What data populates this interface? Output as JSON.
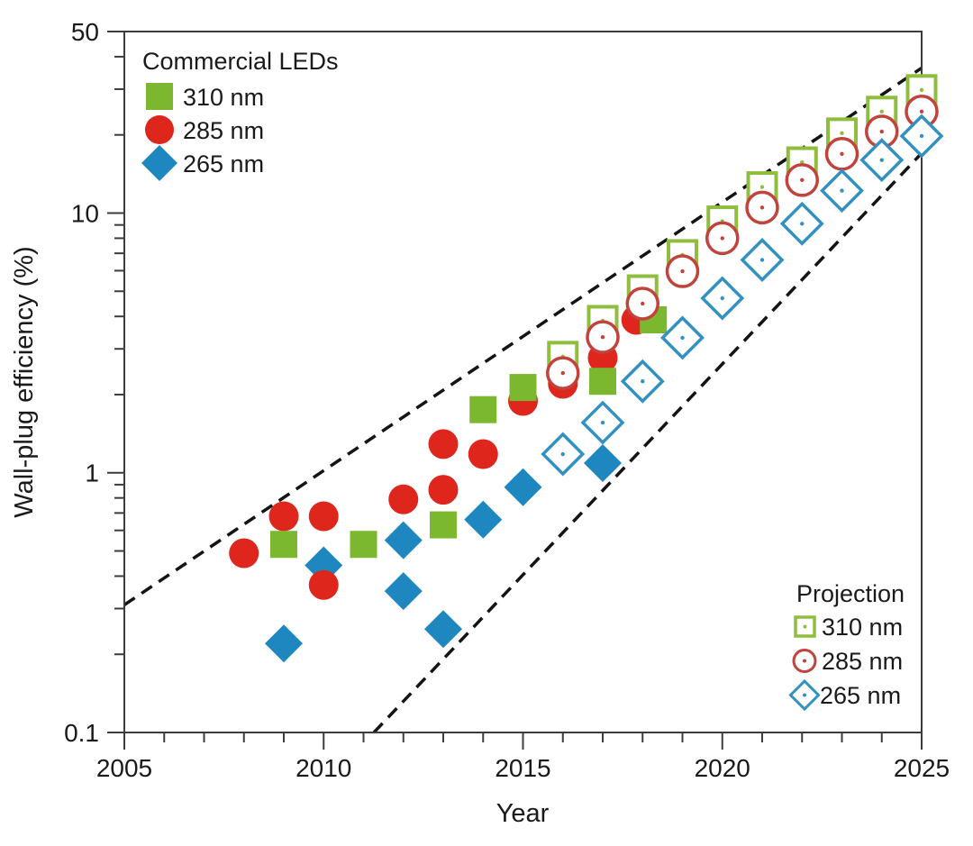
{
  "chart_data": {
    "type": "scatter",
    "title": "",
    "xlabel": "Year",
    "ylabel": "Wall-plug efficiency (%)",
    "xlim": [
      2005,
      2025
    ],
    "ylim": [
      0.1,
      50
    ],
    "y_scale": "log",
    "grid": false,
    "background": "#ffffff",
    "axis_color": "#3c3c3c",
    "trend_color": "#141414",
    "text_color": "#1a1a1a",
    "x_tick_values": [
      2005,
      2010,
      2015,
      2020,
      2025
    ],
    "x_tick_labels": [
      "2005",
      "2010",
      "2015",
      "2020",
      "2025"
    ],
    "y_tick_values": [
      0.1,
      1,
      10,
      50
    ],
    "y_tick_labels": [
      "0.1",
      "1",
      "10",
      "50"
    ],
    "series": [
      {
        "id": "commercial-265nm",
        "group": "Commercial LEDs",
        "label": "265 nm",
        "marker": "diamond",
        "variant": "filled",
        "color": "#1E87C0",
        "points": [
          [
            2009,
            0.22
          ],
          [
            2010,
            0.44
          ],
          [
            2012,
            0.55
          ],
          [
            2012,
            0.35
          ],
          [
            2013,
            0.25
          ],
          [
            2014,
            0.66
          ],
          [
            2015,
            0.88
          ],
          [
            2017,
            1.09
          ]
        ]
      },
      {
        "id": "commercial-285nm",
        "group": "Commercial LEDs",
        "label": "285 nm",
        "marker": "circle",
        "variant": "filled",
        "color": "#DE261D",
        "points": [
          [
            2008,
            0.49
          ],
          [
            2009,
            0.68
          ],
          [
            2010,
            0.68
          ],
          [
            2010,
            0.37
          ],
          [
            2012,
            0.79
          ],
          [
            2013,
            1.29
          ],
          [
            2013,
            0.86
          ],
          [
            2014,
            1.18
          ],
          [
            2015,
            1.89
          ],
          [
            2016,
            2.2
          ],
          [
            2017,
            2.77
          ],
          [
            2017.84,
            3.88
          ]
        ]
      },
      {
        "id": "commercial-310nm",
        "group": "Commercial LEDs",
        "label": "310 nm",
        "marker": "square",
        "variant": "filled",
        "color": "#7CB82F",
        "points": [
          [
            2009,
            0.53
          ],
          [
            2011,
            0.53
          ],
          [
            2013,
            0.63
          ],
          [
            2014,
            1.75
          ],
          [
            2015,
            2.13
          ],
          [
            2017,
            2.25
          ],
          [
            2018.27,
            3.88
          ]
        ]
      },
      {
        "id": "projection-310nm",
        "group": "Projection",
        "label": "310 nm",
        "marker": "square",
        "variant": "open",
        "color": "#8FBE3E",
        "points": [
          [
            2016,
            2.8
          ],
          [
            2017,
            3.85
          ],
          [
            2018,
            5.05
          ],
          [
            2019,
            6.9
          ],
          [
            2020,
            9.3
          ],
          [
            2021,
            12.6
          ],
          [
            2022,
            15.7
          ],
          [
            2023,
            20.3
          ],
          [
            2024,
            24.6
          ],
          [
            2025,
            29.8
          ]
        ]
      },
      {
        "id": "projection-285nm",
        "group": "Projection",
        "label": "285 nm",
        "marker": "circle",
        "variant": "open",
        "color": "#C2433C",
        "points": [
          [
            2016,
            2.42
          ],
          [
            2017,
            3.33
          ],
          [
            2018,
            4.48
          ],
          [
            2019,
            5.97
          ],
          [
            2020,
            8.0
          ],
          [
            2021,
            10.5
          ],
          [
            2022,
            13.4
          ],
          [
            2023,
            16.9
          ],
          [
            2024,
            20.6
          ],
          [
            2025,
            24.6
          ]
        ]
      },
      {
        "id": "projection-265nm",
        "group": "Projection",
        "label": "265 nm",
        "marker": "diamond",
        "variant": "open",
        "color": "#3391C2",
        "points": [
          [
            2016,
            1.18
          ],
          [
            2017,
            1.56
          ],
          [
            2018,
            2.25
          ],
          [
            2019,
            3.31
          ],
          [
            2020,
            4.7
          ],
          [
            2021,
            6.6
          ],
          [
            2022,
            9.1
          ],
          [
            2023,
            12.2
          ],
          [
            2024,
            16.0
          ],
          [
            2025,
            19.8
          ]
        ]
      }
    ],
    "trend_lines": [
      {
        "x1": 2005,
        "y1": 0.31,
        "x2": 2025,
        "y2": 36.2,
        "style": "dashed"
      },
      {
        "x1": 2011.26,
        "y1": 0.1,
        "x2": 2025,
        "y2": 17.0,
        "style": "dashed"
      }
    ],
    "legends": [
      {
        "title": "Commercial LEDs",
        "position": "top-left",
        "items": [
          {
            "label": "310 nm",
            "marker": "square",
            "style": "filled"
          },
          {
            "label": "285 nm",
            "marker": "circle",
            "style": "filled"
          },
          {
            "label": "265 nm",
            "marker": "diamond",
            "style": "filled"
          }
        ]
      },
      {
        "title": "Projection",
        "position": "bottom-right",
        "items": [
          {
            "label": "310 nm",
            "marker": "square",
            "style": "open"
          },
          {
            "label": "285 nm",
            "marker": "circle",
            "style": "open"
          },
          {
            "label": "265 nm",
            "marker": "diamond",
            "style": "open"
          }
        ]
      }
    ]
  }
}
